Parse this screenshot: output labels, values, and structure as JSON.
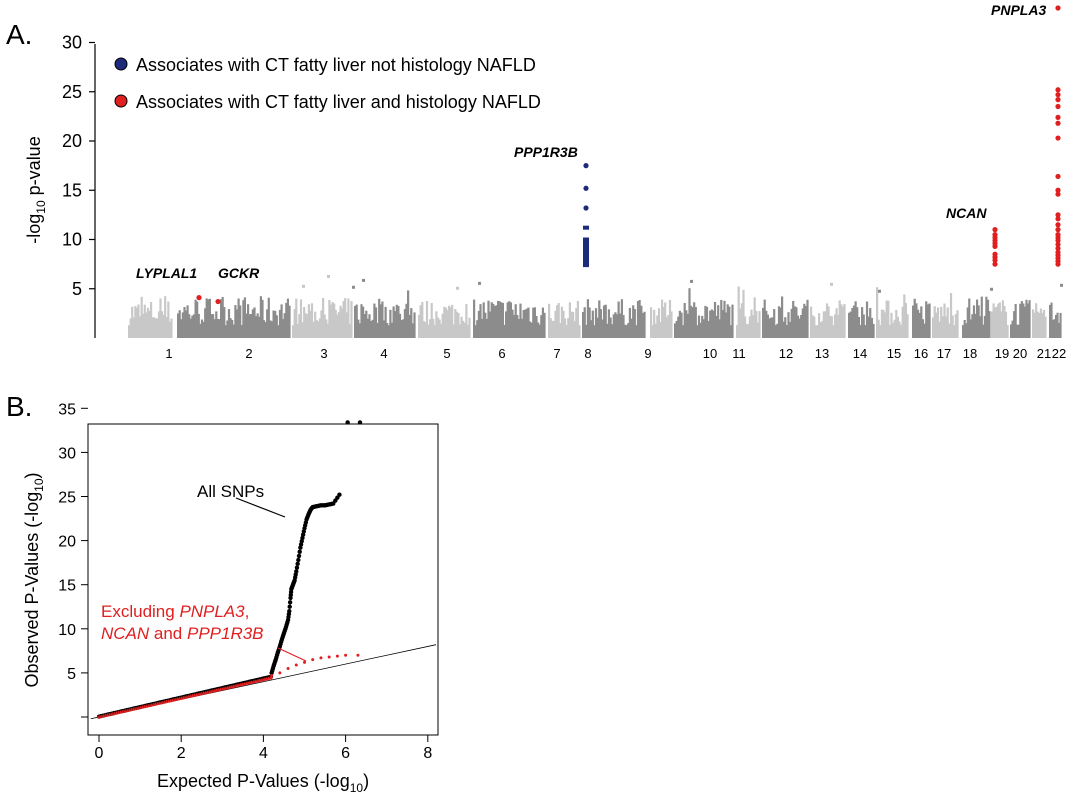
{
  "panel_a": {
    "label": "A."
  },
  "panel_b": {
    "label": "B."
  },
  "chart_data": [
    {
      "type": "scatter",
      "subtype": "manhattan",
      "ylabel_main": "-log",
      "ylabel_sub": "10",
      "ylabel_tail": " p-value",
      "yticks": [
        5,
        10,
        15,
        20,
        25,
        30
      ],
      "ylim": [
        0,
        35
      ],
      "chromosomes": [
        "1",
        "2",
        "3",
        "4",
        "5",
        "6",
        "7",
        "8",
        "9",
        "10",
        "11",
        "12",
        "13",
        "14",
        "15",
        "16",
        "17",
        "18",
        "19",
        "20",
        "21",
        "22"
      ],
      "legend": [
        {
          "label": "Associates with CT fatty liver not histology NAFLD",
          "color": "#1e2a7a"
        },
        {
          "label": "Associates with CT fatty liver and histology NAFLD",
          "color": "#e02020"
        }
      ],
      "colors": {
        "light_gray": "#c8c8c8",
        "dark_gray": "#8c8c8c",
        "blue": "#1e2a7a",
        "red": "#e02020"
      },
      "annotations": [
        {
          "gene": "LYPLAL1",
          "chr": "1"
        },
        {
          "gene": "GCKR",
          "chr": "2"
        },
        {
          "gene": "PPP1R3B",
          "chr": "8"
        },
        {
          "gene": "NCAN",
          "chr": "19"
        },
        {
          "gene": "PNPLA3",
          "chr": "22"
        }
      ],
      "highlighted_points": [
        {
          "gene": "PPP1R3B",
          "chr": "8",
          "color": "blue",
          "values": [
            17.5,
            15.2,
            13.2,
            11.2,
            10.0,
            9.8,
            9.6,
            9.3,
            9.0,
            8.8,
            8.5,
            8.2,
            7.9,
            7.6,
            7.4
          ]
        },
        {
          "gene": "NCAN",
          "chr": "19",
          "color": "red",
          "values": [
            11.0,
            10.5,
            10.2,
            9.9,
            9.6,
            9.3,
            8.5,
            8.2,
            7.9,
            7.5
          ]
        },
        {
          "gene": "PNPLA3",
          "chr": "22",
          "color": "red",
          "values": [
            33.5,
            25.2,
            24.7,
            24.2,
            23.5,
            22.4,
            21.8,
            20.3,
            16.4,
            15.0,
            14.6,
            12.5,
            12.1,
            11.5,
            11.0,
            10.5,
            10.2,
            9.9,
            9.5,
            9.1,
            8.7,
            8.4,
            8.1,
            7.8,
            7.5
          ]
        },
        {
          "gene": "LYPLAL1",
          "chr": "1",
          "color": "red",
          "values": [
            4.1
          ]
        },
        {
          "gene": "GCKR",
          "chr": "2",
          "color": "red",
          "values": [
            3.7
          ]
        }
      ]
    },
    {
      "type": "scatter",
      "subtype": "qq",
      "xlabel_main": "Expected P-Values (-log",
      "xlabel_sub": "10",
      "xlabel_tail": ")",
      "ylabel_main": "Observed P-Values (-log",
      "ylabel_sub": "10",
      "ylabel_tail": ")",
      "xticks": [
        0,
        2,
        4,
        6,
        8
      ],
      "yticks": [
        5,
        10,
        15,
        20,
        25,
        30,
        35
      ],
      "xlim": [
        -0.2,
        8.2
      ],
      "ylim": [
        -1.5,
        36.5
      ],
      "series": [
        {
          "name": "All SNPs",
          "color": "#000000",
          "points": [
            [
              4.2,
              5.0
            ],
            [
              4.25,
              5.8
            ],
            [
              4.3,
              6.5
            ],
            [
              4.35,
              7.3
            ],
            [
              4.4,
              8.0
            ],
            [
              4.45,
              8.8
            ],
            [
              4.5,
              9.5
            ],
            [
              4.55,
              10.2
            ],
            [
              4.6,
              11.0
            ],
            [
              4.63,
              12.0
            ],
            [
              4.66,
              13.5
            ],
            [
              4.68,
              14.5
            ],
            [
              4.72,
              15.0
            ],
            [
              4.76,
              15.5
            ],
            [
              4.8,
              16.5
            ],
            [
              4.85,
              17.8
            ],
            [
              4.9,
              19.2
            ],
            [
              4.95,
              20.3
            ],
            [
              5.0,
              21.4
            ],
            [
              5.05,
              22.4
            ],
            [
              5.1,
              23.0
            ],
            [
              5.15,
              23.5
            ],
            [
              5.2,
              23.8
            ],
            [
              5.3,
              23.9
            ],
            [
              5.4,
              24.0
            ],
            [
              5.5,
              24.0
            ],
            [
              5.6,
              24.1
            ],
            [
              5.7,
              24.2
            ],
            [
              5.85,
              25.2
            ],
            [
              6.05,
              33.4
            ],
            [
              6.35,
              33.4
            ]
          ]
        },
        {
          "name": "Excluding PNPLA3, NCAN and PPP1R3B",
          "color": "#e02020",
          "points": [
            [
              4.2,
              4.7
            ],
            [
              4.4,
              5.0
            ],
            [
              4.6,
              5.5
            ],
            [
              4.8,
              5.9
            ],
            [
              5.0,
              6.2
            ],
            [
              5.2,
              6.5
            ],
            [
              5.4,
              6.7
            ],
            [
              5.6,
              6.8
            ],
            [
              5.8,
              6.9
            ],
            [
              6.0,
              7.0
            ],
            [
              6.3,
              7.0
            ]
          ]
        }
      ],
      "annotation_all": "All SNPs",
      "annotation_excl": {
        "line1_a": "Excluding ",
        "line1_b": "PNPLA3",
        "line1_c": ",",
        "line2_a": "NCAN",
        "line2_b": " and ",
        "line2_c": "PPP1R3B"
      }
    }
  ]
}
